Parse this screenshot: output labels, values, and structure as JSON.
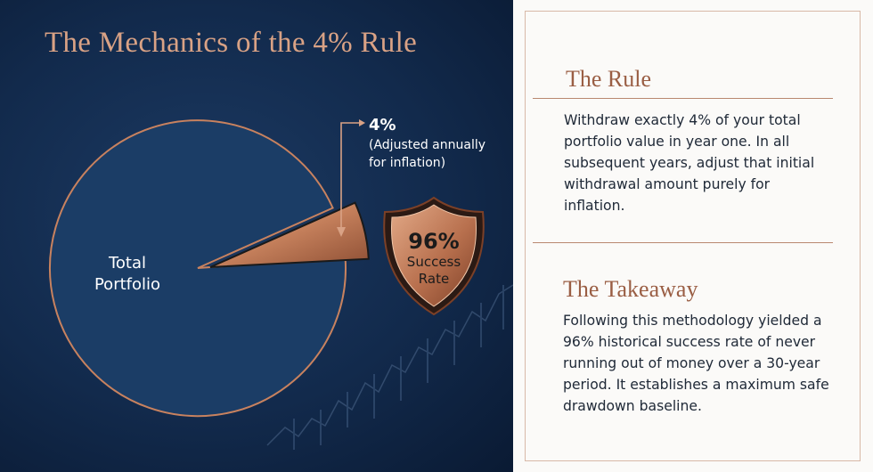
{
  "title": "The Mechanics of the 4% Rule",
  "pie": {
    "main_label_line1": "Total",
    "main_label_line2": "Portfolio",
    "slice_value": "4%",
    "slice_note_line1": "(Adjusted annually",
    "slice_note_line2": "for inflation)"
  },
  "badge": {
    "value": "96%",
    "line1": "Success",
    "line2": "Rate"
  },
  "rule": {
    "heading": "The Rule",
    "text": "Withdraw exactly 4% of your total portfolio value in year one. In all subsequent years, adjust that initial withdrawal amount purely for inflation."
  },
  "takeaway": {
    "heading": "The Takeaway",
    "text": "Following this methodology yielded a 96% historical success rate of never running out of money over a 30-year period. It establishes a maximum safe drawdown baseline."
  },
  "colors": {
    "navy": "#1b3d66",
    "copper": "#c8825f",
    "copper_text": "#9a5e44"
  }
}
